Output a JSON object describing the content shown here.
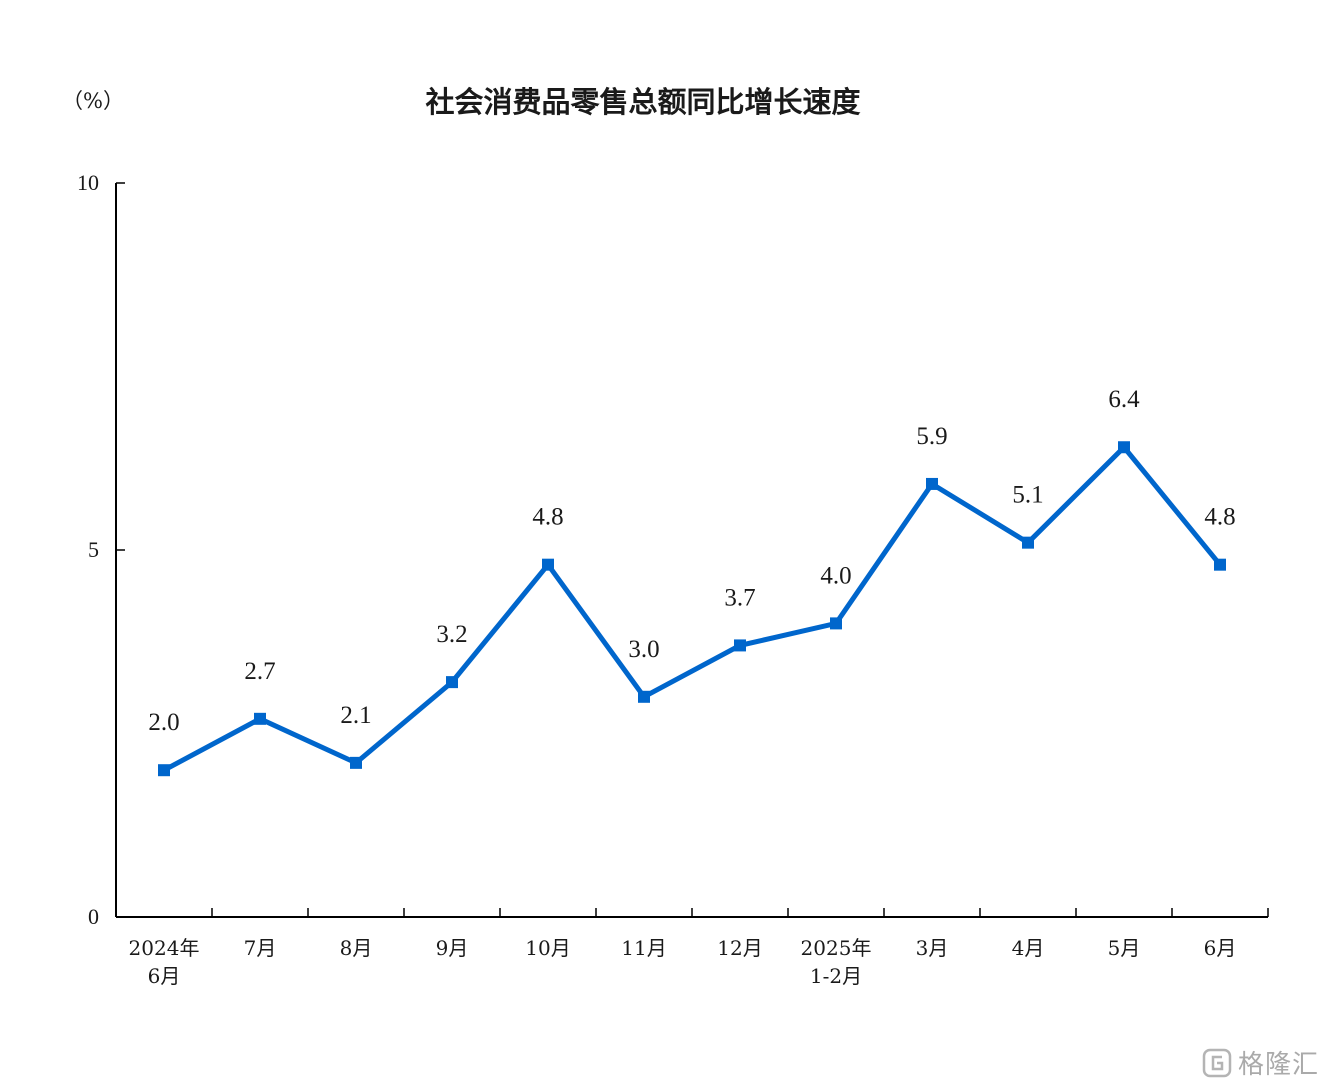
{
  "chart_data": {
    "type": "line",
    "title": "社会消费品零售总额同比增长速度",
    "unit": "（%）",
    "categories": [
      [
        "2024年",
        "6月"
      ],
      [
        "7月"
      ],
      [
        "8月"
      ],
      [
        "9月"
      ],
      [
        "10月"
      ],
      [
        "11月"
      ],
      [
        "12月"
      ],
      [
        "2025年",
        "1-2月"
      ],
      [
        "3月"
      ],
      [
        "4月"
      ],
      [
        "5月"
      ],
      [
        "6月"
      ]
    ],
    "values": [
      2.0,
      2.7,
      2.1,
      3.2,
      4.8,
      3.0,
      3.7,
      4.0,
      5.9,
      5.1,
      6.4,
      4.8
    ],
    "data_labels": [
      "2.0",
      "2.7",
      "2.1",
      "3.2",
      "4.8",
      "3.0",
      "3.7",
      "4.0",
      "5.9",
      "5.1",
      "6.4",
      "4.8"
    ],
    "ylim": [
      0,
      10
    ],
    "yticks": [
      0,
      5,
      10
    ],
    "ytick_labels": [
      "0",
      "5",
      "10"
    ],
    "grid": false,
    "legend": "none",
    "line_color": "#0066cc"
  },
  "watermark": {
    "text": "格隆汇",
    "icon": "gelonghui-logo-icon"
  }
}
